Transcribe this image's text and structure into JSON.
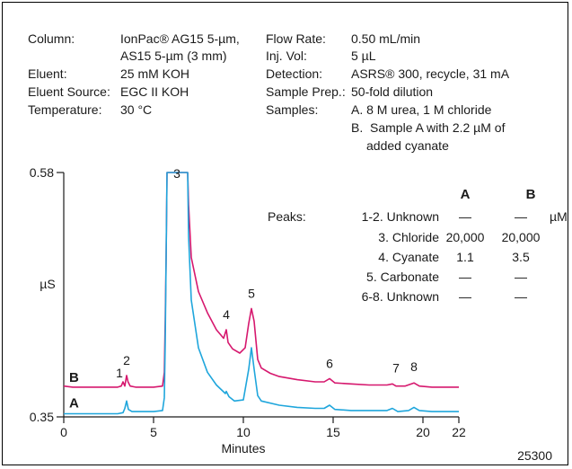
{
  "conditions_left": [
    {
      "label": "Column:",
      "value": "IonPac® AG15 5-µm,"
    },
    {
      "label": "",
      "value": "AS15 5-µm (3 mm)"
    },
    {
      "label": "Eluent:",
      "value": "25 mM KOH"
    },
    {
      "label": "Eluent Source:",
      "value": "EGC II KOH"
    },
    {
      "label": "Temperature:",
      "value": "30 °C"
    }
  ],
  "conditions_right": [
    {
      "label": "Flow Rate:",
      "value": "0.50 mL/min"
    },
    {
      "label": "Inj. Vol:",
      "value": "5 µL"
    },
    {
      "label": "Detection:",
      "value": "ASRS® 300, recycle, 31 mA"
    },
    {
      "label": "Sample Prep.:",
      "value": "50-fold dilution"
    },
    {
      "label": "Samples:",
      "value": "A.  8 M urea, 1 M chloride"
    },
    {
      "label": "",
      "value": "B.  Sample A with 2.2 µM of"
    },
    {
      "label": "",
      "value": "      added cyanate"
    }
  ],
  "peak_table": {
    "heading": "Peaks:",
    "col_a": "A",
    "col_b": "B",
    "unit": "µM",
    "rows": [
      {
        "name": "1-2. Unknown",
        "a": "—",
        "b": "—"
      },
      {
        "name": "3. Chloride",
        "a": "20,000",
        "b": "20,000"
      },
      {
        "name": "4. Cyanate",
        "a": "1.1",
        "b": "3.5"
      },
      {
        "name": "5. Carbonate",
        "a": "—",
        "b": "—"
      },
      {
        "name": "6-8. Unknown",
        "a": "—",
        "b": "—"
      }
    ]
  },
  "figure_id": "25300",
  "chart_data": {
    "type": "line",
    "xlabel": "Minutes",
    "ylabel": "µS",
    "xlim": [
      0,
      22
    ],
    "ylim": [
      0.35,
      0.58
    ],
    "x_ticks": [
      "0",
      "5",
      "10",
      "15",
      "20",
      "22"
    ],
    "y_ticks": [
      "0.35",
      "0.58"
    ],
    "grid": false,
    "series": [
      {
        "name": "B",
        "color": "#d6186e",
        "points": [
          [
            0,
            0.379
          ],
          [
            0.5,
            0.378
          ],
          [
            1,
            0.378
          ],
          [
            2,
            0.378
          ],
          [
            3,
            0.378
          ],
          [
            3.2,
            0.379
          ],
          [
            3.3,
            0.383
          ],
          [
            3.4,
            0.379
          ],
          [
            3.45,
            0.384
          ],
          [
            3.5,
            0.389
          ],
          [
            3.58,
            0.383
          ],
          [
            3.7,
            0.379
          ],
          [
            4,
            0.378
          ],
          [
            5,
            0.378
          ],
          [
            5.5,
            0.379
          ],
          [
            5.6,
            0.392
          ],
          [
            5.65,
            0.44
          ],
          [
            5.7,
            0.5
          ],
          [
            5.75,
            0.58
          ],
          [
            6.9,
            0.58
          ],
          [
            6.95,
            0.55
          ],
          [
            7.1,
            0.5
          ],
          [
            7.5,
            0.468
          ],
          [
            8,
            0.448
          ],
          [
            8.5,
            0.432
          ],
          [
            8.9,
            0.424
          ],
          [
            9.05,
            0.432
          ],
          [
            9.15,
            0.42
          ],
          [
            9.4,
            0.414
          ],
          [
            9.8,
            0.41
          ],
          [
            10.1,
            0.415
          ],
          [
            10.3,
            0.438
          ],
          [
            10.45,
            0.452
          ],
          [
            10.6,
            0.44
          ],
          [
            10.8,
            0.404
          ],
          [
            11,
            0.396
          ],
          [
            11.5,
            0.391
          ],
          [
            12,
            0.388
          ],
          [
            13,
            0.385
          ],
          [
            14,
            0.383
          ],
          [
            14.5,
            0.383
          ],
          [
            14.8,
            0.386
          ],
          [
            15.1,
            0.382
          ],
          [
            16,
            0.381
          ],
          [
            17,
            0.38
          ],
          [
            18,
            0.38
          ],
          [
            18.3,
            0.381
          ],
          [
            18.5,
            0.379
          ],
          [
            19,
            0.379
          ],
          [
            19.5,
            0.382
          ],
          [
            19.8,
            0.379
          ],
          [
            20.5,
            0.378
          ],
          [
            22,
            0.378
          ]
        ]
      },
      {
        "name": "A",
        "color": "#1fa6dc",
        "points": [
          [
            0,
            0.353
          ],
          [
            0.5,
            0.353
          ],
          [
            1,
            0.353
          ],
          [
            2,
            0.353
          ],
          [
            3,
            0.353
          ],
          [
            3.3,
            0.354
          ],
          [
            3.4,
            0.358
          ],
          [
            3.5,
            0.365
          ],
          [
            3.6,
            0.357
          ],
          [
            3.8,
            0.355
          ],
          [
            4.5,
            0.355
          ],
          [
            5,
            0.355
          ],
          [
            5.5,
            0.356
          ],
          [
            5.6,
            0.368
          ],
          [
            5.65,
            0.42
          ],
          [
            5.7,
            0.5
          ],
          [
            5.75,
            0.58
          ],
          [
            6.9,
            0.58
          ],
          [
            6.95,
            0.52
          ],
          [
            7.1,
            0.46
          ],
          [
            7.5,
            0.415
          ],
          [
            8,
            0.392
          ],
          [
            8.5,
            0.38
          ],
          [
            9,
            0.372
          ],
          [
            9.05,
            0.374
          ],
          [
            9.2,
            0.369
          ],
          [
            9.5,
            0.365
          ],
          [
            10,
            0.366
          ],
          [
            10.3,
            0.395
          ],
          [
            10.45,
            0.415
          ],
          [
            10.6,
            0.395
          ],
          [
            10.8,
            0.37
          ],
          [
            11,
            0.365
          ],
          [
            12,
            0.361
          ],
          [
            13,
            0.359
          ],
          [
            14,
            0.358
          ],
          [
            14.5,
            0.358
          ],
          [
            14.8,
            0.361
          ],
          [
            15.1,
            0.357
          ],
          [
            16,
            0.356
          ],
          [
            17,
            0.356
          ],
          [
            18,
            0.356
          ],
          [
            18.3,
            0.358
          ],
          [
            18.6,
            0.355
          ],
          [
            19.2,
            0.356
          ],
          [
            19.5,
            0.359
          ],
          [
            19.8,
            0.356
          ],
          [
            20.5,
            0.355
          ],
          [
            22,
            0.355
          ]
        ]
      }
    ],
    "trace_labels": [
      {
        "text": "B",
        "x": 0.3,
        "y": 0.383
      },
      {
        "text": "A",
        "x": 0.3,
        "y": 0.359
      }
    ],
    "annotations": [
      {
        "text": "1",
        "x": 3.1,
        "y": 0.387
      },
      {
        "text": "2",
        "x": 3.5,
        "y": 0.399
      },
      {
        "text": "3",
        "x": 6.3,
        "y": 0.575
      },
      {
        "text": "4",
        "x": 9.05,
        "y": 0.442
      },
      {
        "text": "5",
        "x": 10.45,
        "y": 0.462
      },
      {
        "text": "6",
        "x": 14.8,
        "y": 0.396
      },
      {
        "text": "7",
        "x": 18.5,
        "y": 0.392
      },
      {
        "text": "8",
        "x": 19.5,
        "y": 0.393
      }
    ]
  }
}
